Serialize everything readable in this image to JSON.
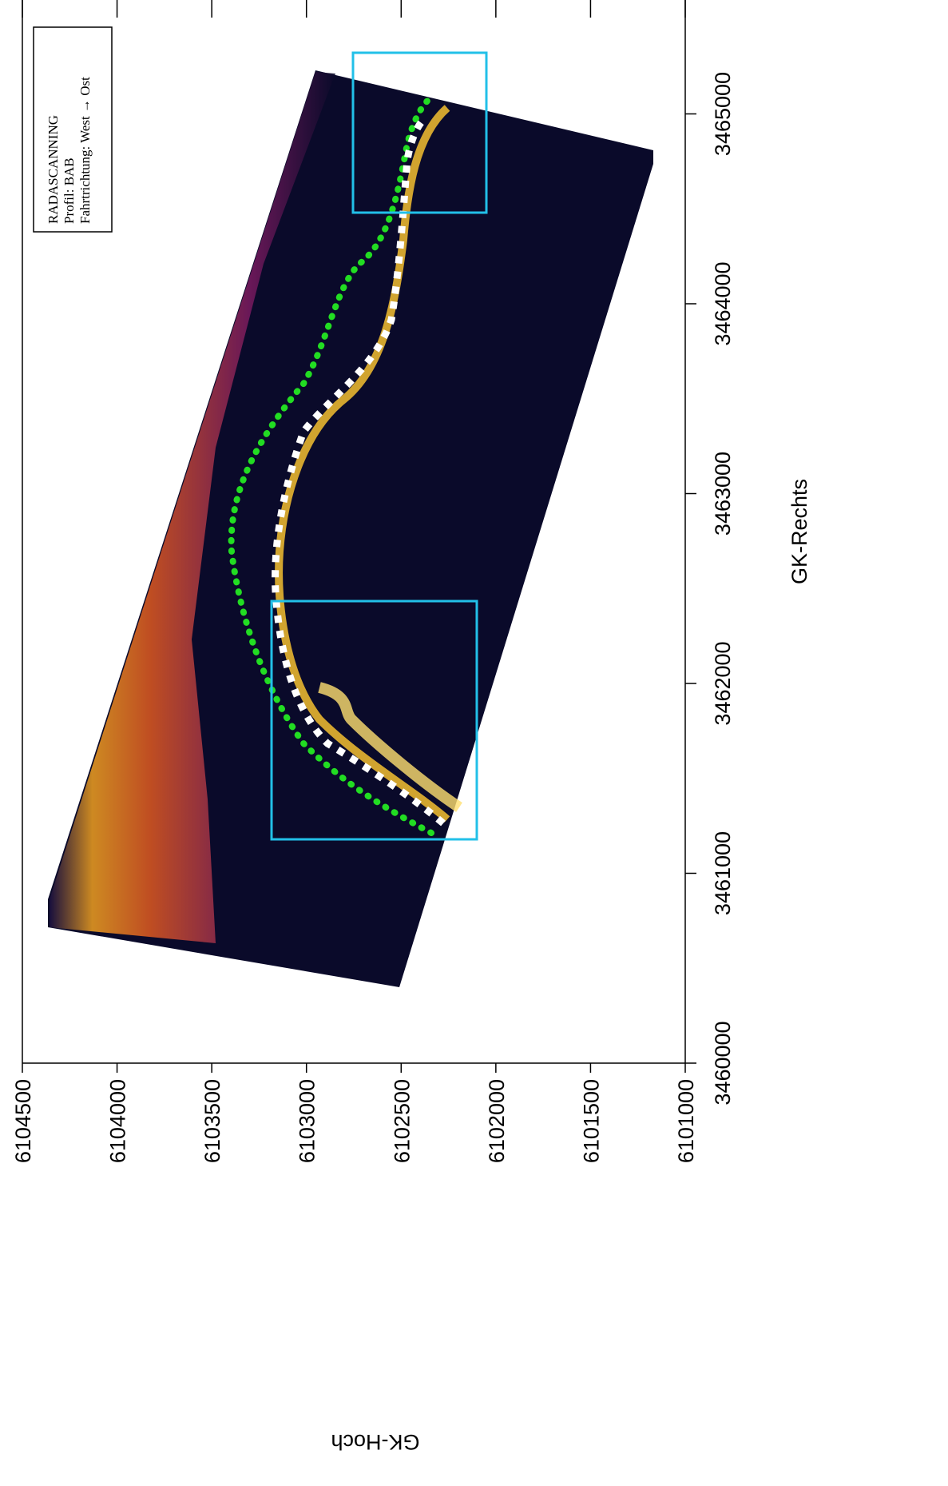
{
  "chart_data": {
    "type": "radar-map",
    "annotation": [
      "RADASCANNING",
      "Profil: BAB",
      "Fahrtrichtung: West → Ost"
    ],
    "xlabel": "GK-Rechts",
    "ylabel": "GK-Hoch",
    "xlim": [
      3460000,
      3465600
    ],
    "xticks": [
      3460000,
      3461000,
      3462000,
      3463000,
      3464000,
      3465000
    ],
    "ylim": [
      6104500,
      6101000
    ],
    "yticks": [
      6104500,
      6104000,
      6103500,
      6103000,
      6102500,
      6102000,
      6101500,
      6101000
    ]
  }
}
